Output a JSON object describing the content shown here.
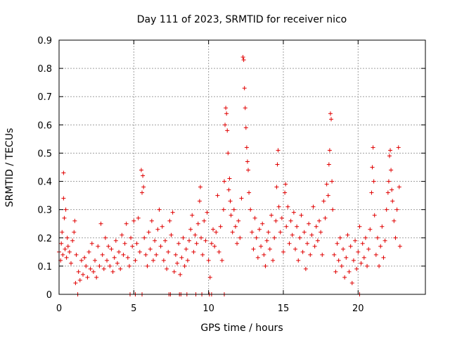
{
  "chart_data": {
    "type": "scatter",
    "title": "Day 111 of 2023, SRMTID for receiver nico",
    "xlabel": "GPS time / hours",
    "ylabel": "SRMTID / TECUs",
    "xlim": [
      0,
      24.5
    ],
    "ylim": [
      0,
      0.9
    ],
    "xticks": [
      0,
      5,
      10,
      15,
      20
    ],
    "yticks": [
      0,
      0.1,
      0.2,
      0.3,
      0.4,
      0.5,
      0.6,
      0.7,
      0.8,
      0.9
    ],
    "xtick_labels": [
      "0",
      "5",
      "10",
      "15",
      "20"
    ],
    "ytick_labels": [
      "0",
      "0.1",
      "0.2",
      "0.3",
      "0.4",
      "0.5",
      "0.6",
      "0.7",
      "0.8",
      "0.9"
    ],
    "grid": true,
    "marker": "+",
    "color": "#e00000",
    "series": [
      {
        "name": "SRMTID",
        "points": [
          [
            0.0,
            0.15
          ],
          [
            0.1,
            0.12
          ],
          [
            0.15,
            0.18
          ],
          [
            0.2,
            0.22
          ],
          [
            0.25,
            0.14
          ],
          [
            0.3,
            0.34
          ],
          [
            0.3,
            0.43
          ],
          [
            0.35,
            0.27
          ],
          [
            0.4,
            0.16
          ],
          [
            0.45,
            0.3
          ],
          [
            0.5,
            0.13
          ],
          [
            0.55,
            0.2
          ],
          [
            0.6,
            0.17
          ],
          [
            0.7,
            0.15
          ],
          [
            0.8,
            0.11
          ],
          [
            0.9,
            0.19
          ],
          [
            1.0,
            0.22
          ],
          [
            1.05,
            0.26
          ],
          [
            1.1,
            0.04
          ],
          [
            1.15,
            0.14
          ],
          [
            1.3,
            0.08
          ],
          [
            1.4,
            0.05
          ],
          [
            1.5,
            0.12
          ],
          [
            1.6,
            0.07
          ],
          [
            1.7,
            0.13
          ],
          [
            1.8,
            0.1
          ],
          [
            1.9,
            0.06
          ],
          [
            2.0,
            0.15
          ],
          [
            2.1,
            0.09
          ],
          [
            2.2,
            0.18
          ],
          [
            2.3,
            0.08
          ],
          [
            2.4,
            0.12
          ],
          [
            2.5,
            0.06
          ],
          [
            2.6,
            0.17
          ],
          [
            2.7,
            0.1
          ],
          [
            2.8,
            0.25
          ],
          [
            2.9,
            0.14
          ],
          [
            3.0,
            0.09
          ],
          [
            3.1,
            0.2
          ],
          [
            3.2,
            0.12
          ],
          [
            3.3,
            0.17
          ],
          [
            3.4,
            0.1
          ],
          [
            3.5,
            0.16
          ],
          [
            3.6,
            0.08
          ],
          [
            3.7,
            0.13
          ],
          [
            3.8,
            0.19
          ],
          [
            3.9,
            0.11
          ],
          [
            4.0,
            0.15
          ],
          [
            4.1,
            0.09
          ],
          [
            4.2,
            0.21
          ],
          [
            4.3,
            0.14
          ],
          [
            4.4,
            0.18
          ],
          [
            4.5,
            0.25
          ],
          [
            4.6,
            0.13
          ],
          [
            4.7,
            0.1
          ],
          [
            4.8,
            0.2
          ],
          [
            4.9,
            0.17
          ],
          [
            5.0,
            0.26
          ],
          [
            5.1,
            0.12
          ],
          [
            5.2,
            0.18
          ],
          [
            5.3,
            0.27
          ],
          [
            5.4,
            0.15
          ],
          [
            5.5,
            0.44
          ],
          [
            5.55,
            0.36
          ],
          [
            5.6,
            0.42
          ],
          [
            5.65,
            0.38
          ],
          [
            5.7,
            0.2
          ],
          [
            5.8,
            0.14
          ],
          [
            5.9,
            0.1
          ],
          [
            6.0,
            0.22
          ],
          [
            6.1,
            0.16
          ],
          [
            6.2,
            0.26
          ],
          [
            6.3,
            0.12
          ],
          [
            6.4,
            0.19
          ],
          [
            6.5,
            0.14
          ],
          [
            6.6,
            0.23
          ],
          [
            6.7,
            0.3
          ],
          [
            6.8,
            0.17
          ],
          [
            6.9,
            0.24
          ],
          [
            7.0,
            0.12
          ],
          [
            7.1,
            0.19
          ],
          [
            7.2,
            0.09
          ],
          [
            7.3,
            0.15
          ],
          [
            7.4,
            0.26
          ],
          [
            7.5,
            0.21
          ],
          [
            7.6,
            0.29
          ],
          [
            7.7,
            0.08
          ],
          [
            7.8,
            0.14
          ],
          [
            7.9,
            0.11
          ],
          [
            8.0,
            0.18
          ],
          [
            8.1,
            0.07
          ],
          [
            8.2,
            0.13
          ],
          [
            8.3,
            0.2
          ],
          [
            8.4,
            0.1
          ],
          [
            8.5,
            0.16
          ],
          [
            8.6,
            0.12
          ],
          [
            8.7,
            0.19
          ],
          [
            8.8,
            0.23
          ],
          [
            8.9,
            0.28
          ],
          [
            9.0,
            0.15
          ],
          [
            9.1,
            0.21
          ],
          [
            9.2,
            0.18
          ],
          [
            9.3,
            0.25
          ],
          [
            9.4,
            0.33
          ],
          [
            9.45,
            0.38
          ],
          [
            9.5,
            0.2
          ],
          [
            9.6,
            0.14
          ],
          [
            9.7,
            0.26
          ],
          [
            9.8,
            0.19
          ],
          [
            9.9,
            0.29
          ],
          [
            10.0,
            0.12
          ],
          [
            10.1,
            0.06
          ],
          [
            10.2,
            0.18
          ],
          [
            10.3,
            0.23
          ],
          [
            10.4,
            0.17
          ],
          [
            10.5,
            0.22
          ],
          [
            10.6,
            0.35
          ],
          [
            10.7,
            0.15
          ],
          [
            10.8,
            0.24
          ],
          [
            10.9,
            0.12
          ],
          [
            11.0,
            0.3
          ],
          [
            11.05,
            0.4
          ],
          [
            11.1,
            0.6
          ],
          [
            11.15,
            0.66
          ],
          [
            11.2,
            0.64
          ],
          [
            11.25,
            0.58
          ],
          [
            11.3,
            0.5
          ],
          [
            11.35,
            0.37
          ],
          [
            11.4,
            0.41
          ],
          [
            11.45,
            0.33
          ],
          [
            11.5,
            0.28
          ],
          [
            11.6,
            0.22
          ],
          [
            11.7,
            0.3
          ],
          [
            11.8,
            0.24
          ],
          [
            11.9,
            0.18
          ],
          [
            12.0,
            0.26
          ],
          [
            12.1,
            0.2
          ],
          [
            12.2,
            0.34
          ],
          [
            12.3,
            0.84
          ],
          [
            12.35,
            0.83
          ],
          [
            12.4,
            0.73
          ],
          [
            12.45,
            0.66
          ],
          [
            12.5,
            0.59
          ],
          [
            12.55,
            0.52
          ],
          [
            12.6,
            0.47
          ],
          [
            12.65,
            0.44
          ],
          [
            12.7,
            0.36
          ],
          [
            12.8,
            0.3
          ],
          [
            12.9,
            0.22
          ],
          [
            13.0,
            0.16
          ],
          [
            13.1,
            0.27
          ],
          [
            13.2,
            0.2
          ],
          [
            13.3,
            0.13
          ],
          [
            13.4,
            0.23
          ],
          [
            13.5,
            0.17
          ],
          [
            13.6,
            0.25
          ],
          [
            13.7,
            0.14
          ],
          [
            13.8,
            0.1
          ],
          [
            13.9,
            0.19
          ],
          [
            14.0,
            0.22
          ],
          [
            14.1,
            0.16
          ],
          [
            14.2,
            0.28
          ],
          [
            14.3,
            0.12
          ],
          [
            14.4,
            0.2
          ],
          [
            14.5,
            0.26
          ],
          [
            14.55,
            0.38
          ],
          [
            14.6,
            0.46
          ],
          [
            14.65,
            0.51
          ],
          [
            14.7,
            0.31
          ],
          [
            14.8,
            0.22
          ],
          [
            14.9,
            0.27
          ],
          [
            15.0,
            0.15
          ],
          [
            15.1,
            0.36
          ],
          [
            15.15,
            0.39
          ],
          [
            15.2,
            0.24
          ],
          [
            15.3,
            0.31
          ],
          [
            15.4,
            0.18
          ],
          [
            15.5,
            0.26
          ],
          [
            15.6,
            0.21
          ],
          [
            15.7,
            0.29
          ],
          [
            15.8,
            0.16
          ],
          [
            15.9,
            0.24
          ],
          [
            16.0,
            0.12
          ],
          [
            16.1,
            0.2
          ],
          [
            16.2,
            0.28
          ],
          [
            16.3,
            0.15
          ],
          [
            16.4,
            0.22
          ],
          [
            16.5,
            0.09
          ],
          [
            16.6,
            0.18
          ],
          [
            16.7,
            0.25
          ],
          [
            16.8,
            0.14
          ],
          [
            16.9,
            0.21
          ],
          [
            17.0,
            0.31
          ],
          [
            17.1,
            0.17
          ],
          [
            17.2,
            0.24
          ],
          [
            17.3,
            0.19
          ],
          [
            17.4,
            0.26
          ],
          [
            17.5,
            0.22
          ],
          [
            17.6,
            0.14
          ],
          [
            17.7,
            0.33
          ],
          [
            17.8,
            0.27
          ],
          [
            17.9,
            0.39
          ],
          [
            18.0,
            0.35
          ],
          [
            18.05,
            0.46
          ],
          [
            18.1,
            0.51
          ],
          [
            18.15,
            0.64
          ],
          [
            18.2,
            0.62
          ],
          [
            18.25,
            0.4
          ],
          [
            18.3,
            0.3
          ],
          [
            18.4,
            0.14
          ],
          [
            18.5,
            0.08
          ],
          [
            18.6,
            0.18
          ],
          [
            18.7,
            0.12
          ],
          [
            18.8,
            0.2
          ],
          [
            18.9,
            0.1
          ],
          [
            19.0,
            0.16
          ],
          [
            19.1,
            0.06
          ],
          [
            19.2,
            0.13
          ],
          [
            19.3,
            0.21
          ],
          [
            19.4,
            0.08
          ],
          [
            19.5,
            0.17
          ],
          [
            19.6,
            0.04
          ],
          [
            19.7,
            0.12
          ],
          [
            19.8,
            0.19
          ],
          [
            19.9,
            0.09
          ],
          [
            20.0,
            0.15
          ],
          [
            20.1,
            0.24
          ],
          [
            20.2,
            0.11
          ],
          [
            20.3,
            0.18
          ],
          [
            20.4,
            0.13
          ],
          [
            20.5,
            0.2
          ],
          [
            20.6,
            0.1
          ],
          [
            20.7,
            0.16
          ],
          [
            20.8,
            0.23
          ],
          [
            20.9,
            0.36
          ],
          [
            20.95,
            0.45
          ],
          [
            21.0,
            0.52
          ],
          [
            21.05,
            0.4
          ],
          [
            21.1,
            0.28
          ],
          [
            21.2,
            0.14
          ],
          [
            21.3,
            0.2
          ],
          [
            21.4,
            0.1
          ],
          [
            21.5,
            0.17
          ],
          [
            21.6,
            0.24
          ],
          [
            21.7,
            0.13
          ],
          [
            21.8,
            0.19
          ],
          [
            21.9,
            0.3
          ],
          [
            22.0,
            0.36
          ],
          [
            22.05,
            0.4
          ],
          [
            22.1,
            0.49
          ],
          [
            22.15,
            0.51
          ],
          [
            22.2,
            0.44
          ],
          [
            22.25,
            0.37
          ],
          [
            22.3,
            0.33
          ],
          [
            22.4,
            0.26
          ],
          [
            22.5,
            0.2
          ],
          [
            22.6,
            0.3
          ],
          [
            22.7,
            0.52
          ],
          [
            22.75,
            0.38
          ],
          [
            22.8,
            0.17
          ]
        ],
        "zero_points": [
          1.25,
          4.75,
          5.1,
          5.55,
          7.35,
          7.45,
          8.05,
          8.15,
          8.55,
          9.15,
          9.55,
          10.05,
          10.2,
          11.05,
          20.1
        ]
      }
    ]
  }
}
